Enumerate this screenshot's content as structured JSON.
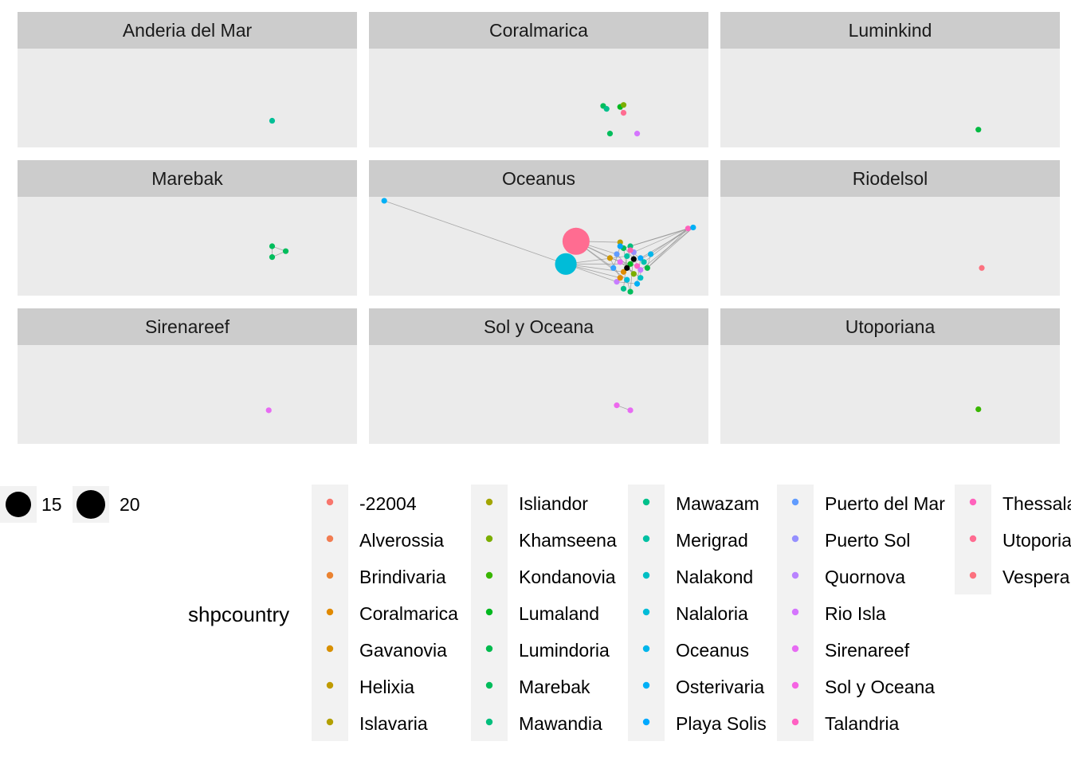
{
  "chart_data": {
    "type": "network-facets",
    "facet_var": "",
    "facets": [
      {
        "name": "Anderia del Mar",
        "nodes": [
          {
            "x": 0.75,
            "y": 0.73,
            "color": "#00BF96"
          }
        ],
        "edges": []
      },
      {
        "name": "Coralmarica",
        "nodes": [
          {
            "x": 0.69,
            "y": 0.58,
            "color": "#00BD5C"
          },
          {
            "x": 0.7,
            "y": 0.61,
            "color": "#00C08B"
          },
          {
            "x": 0.74,
            "y": 0.59,
            "color": "#00B81F"
          },
          {
            "x": 0.75,
            "y": 0.57,
            "color": "#7CAE00"
          },
          {
            "x": 0.75,
            "y": 0.65,
            "color": "#FF6C91"
          },
          {
            "x": 0.71,
            "y": 0.86,
            "color": "#00BD5C"
          },
          {
            "x": 0.79,
            "y": 0.86,
            "color": "#D575FE"
          }
        ],
        "edges": [
          [
            0,
            1
          ],
          [
            2,
            3
          ],
          [
            2,
            4
          ]
        ]
      },
      {
        "name": "Luminkind",
        "nodes": [
          {
            "x": 0.76,
            "y": 0.82,
            "color": "#00BA42"
          }
        ],
        "edges": []
      },
      {
        "name": "Marebak",
        "nodes": [
          {
            "x": 0.75,
            "y": 0.5,
            "color": "#00BD5C"
          },
          {
            "x": 0.79,
            "y": 0.55,
            "color": "#00BD5C"
          },
          {
            "x": 0.75,
            "y": 0.61,
            "color": "#00BD5C"
          }
        ],
        "edges": [
          [
            0,
            1
          ],
          [
            1,
            2
          ],
          [
            0,
            2
          ]
        ]
      },
      {
        "name": "Oceanus",
        "nodes": [
          {
            "x": 0.045,
            "y": 0.04,
            "color": "#00B0F6"
          },
          {
            "x": 0.61,
            "y": 0.45,
            "color": "#FF6C91",
            "size": 20
          },
          {
            "x": 0.58,
            "y": 0.68,
            "color": "#00BCD8",
            "size": 16
          },
          {
            "x": 0.94,
            "y": 0.32,
            "color": "#FF62BC"
          },
          {
            "x": 0.955,
            "y": 0.31,
            "color": "#00B0F6"
          },
          {
            "x": 0.74,
            "y": 0.46,
            "color": "#B79F00"
          },
          {
            "x": 0.75,
            "y": 0.52,
            "color": "#00BD5C"
          },
          {
            "x": 0.77,
            "y": 0.5,
            "color": "#00BF7D"
          },
          {
            "x": 0.73,
            "y": 0.58,
            "color": "#619CFF"
          },
          {
            "x": 0.76,
            "y": 0.6,
            "color": "#00C1A3"
          },
          {
            "x": 0.78,
            "y": 0.56,
            "color": "#9590FF"
          },
          {
            "x": 0.8,
            "y": 0.62,
            "color": "#00A9FF"
          },
          {
            "x": 0.74,
            "y": 0.66,
            "color": "#E76BF3"
          },
          {
            "x": 0.77,
            "y": 0.68,
            "color": "#00B81F"
          },
          {
            "x": 0.79,
            "y": 0.7,
            "color": "#FF61C3"
          },
          {
            "x": 0.81,
            "y": 0.66,
            "color": "#00C0AF"
          },
          {
            "x": 0.72,
            "y": 0.72,
            "color": "#35A2FF"
          },
          {
            "x": 0.75,
            "y": 0.76,
            "color": "#DE8C00"
          },
          {
            "x": 0.78,
            "y": 0.78,
            "color": "#7CAE00"
          },
          {
            "x": 0.8,
            "y": 0.74,
            "color": "#C77CFF"
          },
          {
            "x": 0.76,
            "y": 0.84,
            "color": "#00BCD8"
          },
          {
            "x": 0.73,
            "y": 0.86,
            "color": "#C77CFF"
          },
          {
            "x": 0.75,
            "y": 0.93,
            "color": "#00C08B"
          },
          {
            "x": 0.77,
            "y": 0.96,
            "color": "#00BD5C"
          },
          {
            "x": 0.79,
            "y": 0.88,
            "color": "#00B0F6"
          },
          {
            "x": 0.82,
            "y": 0.72,
            "color": "#00BA42"
          },
          {
            "x": 0.74,
            "y": 0.82,
            "color": "#E18A00"
          },
          {
            "x": 0.78,
            "y": 0.63,
            "color": "#000000"
          },
          {
            "x": 0.76,
            "y": 0.72,
            "color": "#000000"
          },
          {
            "x": 0.8,
            "y": 0.82,
            "color": "#00BFC4"
          },
          {
            "x": 0.83,
            "y": 0.58,
            "color": "#00B6EB"
          },
          {
            "x": 0.71,
            "y": 0.62,
            "color": "#CD9600"
          },
          {
            "x": 0.77,
            "y": 0.54,
            "color": "#FF64B0"
          },
          {
            "x": 0.74,
            "y": 0.5,
            "color": "#00A5FF"
          }
        ],
        "edges": [
          [
            0,
            2
          ],
          [
            1,
            5
          ],
          [
            1,
            8
          ],
          [
            1,
            12
          ],
          [
            1,
            16
          ],
          [
            1,
            20
          ],
          [
            2,
            9
          ],
          [
            2,
            13
          ],
          [
            2,
            17
          ],
          [
            2,
            21
          ],
          [
            2,
            26
          ],
          [
            3,
            6
          ],
          [
            3,
            10
          ],
          [
            3,
            15
          ],
          [
            3,
            25
          ],
          [
            4,
            7
          ],
          [
            4,
            11
          ],
          [
            4,
            19
          ],
          [
            5,
            27
          ],
          [
            6,
            28
          ],
          [
            7,
            14
          ],
          [
            8,
            18
          ],
          [
            9,
            22
          ],
          [
            10,
            23
          ],
          [
            11,
            24
          ],
          [
            12,
            29
          ],
          [
            13,
            30
          ],
          [
            14,
            31
          ],
          [
            15,
            32
          ],
          [
            16,
            33
          ],
          [
            17,
            27
          ],
          [
            18,
            28
          ],
          [
            19,
            29
          ],
          [
            20,
            23
          ],
          [
            21,
            24
          ],
          [
            25,
            30
          ],
          [
            26,
            31
          ],
          [
            3,
            30
          ],
          [
            4,
            25
          ],
          [
            1,
            31
          ]
        ]
      },
      {
        "name": "Riodelsol",
        "nodes": [
          {
            "x": 0.77,
            "y": 0.72,
            "color": "#FC717F"
          }
        ],
        "edges": []
      },
      {
        "name": "Sirenareef",
        "nodes": [
          {
            "x": 0.74,
            "y": 0.66,
            "color": "#E76BF3"
          }
        ],
        "edges": []
      },
      {
        "name": "Sol y Oceana",
        "nodes": [
          {
            "x": 0.73,
            "y": 0.61,
            "color": "#ED68ED"
          },
          {
            "x": 0.77,
            "y": 0.66,
            "color": "#E76BF3"
          }
        ],
        "edges": [
          [
            0,
            1
          ]
        ]
      },
      {
        "name": "Utoporiana",
        "nodes": [
          {
            "x": 0.76,
            "y": 0.65,
            "color": "#39B600"
          }
        ],
        "edges": []
      }
    ],
    "size_legend": {
      "title": "",
      "entries": [
        {
          "label": "15",
          "value": 15
        },
        {
          "label": "20",
          "value": 20
        }
      ]
    },
    "color_legend": {
      "title": "shpcountry",
      "position": "bottom",
      "entries": [
        {
          "label": "-22004",
          "color": "#F8766D"
        },
        {
          "label": "Alverossia",
          "color": "#F27D52"
        },
        {
          "label": "Brindivaria",
          "color": "#EA8331"
        },
        {
          "label": "Coralmarica",
          "color": "#E18A00"
        },
        {
          "label": "Gavanovia",
          "color": "#D89000"
        },
        {
          "label": "Helixia",
          "color": "#C09B00"
        },
        {
          "label": "Islavaria",
          "color": "#B3A000"
        },
        {
          "label": "Isliandor",
          "color": "#A3A500"
        },
        {
          "label": "Khamseena",
          "color": "#7CAE00"
        },
        {
          "label": "Kondanovia",
          "color": "#39B600"
        },
        {
          "label": "Lumaland",
          "color": "#00B81F"
        },
        {
          "label": "Lumindoria",
          "color": "#00BB4E"
        },
        {
          "label": "Marebak",
          "color": "#00BD5C"
        },
        {
          "label": "Mawandia",
          "color": "#00BF7D"
        },
        {
          "label": "Mawazam",
          "color": "#00C08B"
        },
        {
          "label": "Merigrad",
          "color": "#00C1A3"
        },
        {
          "label": "Nalakond",
          "color": "#00BFC4"
        },
        {
          "label": "Nalaloria",
          "color": "#00BCD8"
        },
        {
          "label": "Oceanus",
          "color": "#00B6EB"
        },
        {
          "label": "Osterivaria",
          "color": "#00B0F6"
        },
        {
          "label": "Playa Solis",
          "color": "#00A9FF"
        },
        {
          "label": "Puerto del Mar",
          "color": "#619CFF"
        },
        {
          "label": "Puerto Sol",
          "color": "#9590FF"
        },
        {
          "label": "Quornova",
          "color": "#B983FF"
        },
        {
          "label": "Rio Isla",
          "color": "#D575FE"
        },
        {
          "label": "Sirenareef",
          "color": "#E76BF3"
        },
        {
          "label": "Sol y Oceana",
          "color": "#F564E3"
        },
        {
          "label": "Talandria",
          "color": "#FF61C3"
        },
        {
          "label": "Thessala",
          "color": "#FF62BC"
        },
        {
          "label": "Utoporia",
          "color": "#FF6C91"
        },
        {
          "label": "Vespera",
          "color": "#FC717F"
        }
      ]
    },
    "grid": false
  }
}
